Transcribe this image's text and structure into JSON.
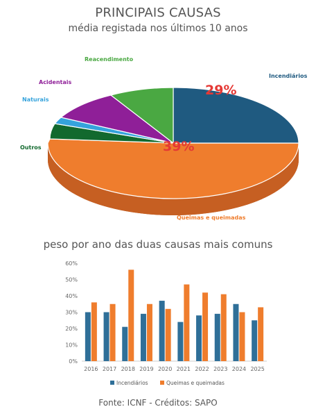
{
  "header": {
    "title": "PRINCIPAIS CAUSAS",
    "subtitle": "média registada nos últimos 10 anos"
  },
  "pie": {
    "slices": [
      {
        "name": "Incendiários",
        "color": "#1f5a80"
      },
      {
        "name": "Queimas e queimadas",
        "color": "#ef7d2d"
      },
      {
        "name": "Outros",
        "color": "#12692e"
      },
      {
        "name": "Naturais",
        "color": "#35a3dc"
      },
      {
        "name": "Acidentais",
        "color": "#8f1f98"
      },
      {
        "name": "Reacendimento",
        "color": "#4aa842"
      }
    ],
    "percent_labels": {
      "incendiarios": "29%",
      "queimas": "39%"
    }
  },
  "chart_data": {
    "type": "bar",
    "title": "peso por ano das duas causas mais comuns",
    "categories": [
      "2016",
      "2017",
      "2018",
      "2019",
      "2020",
      "2021",
      "2022",
      "2023",
      "2024",
      "2025"
    ],
    "series": [
      {
        "name": "Incendiários",
        "color": "#2f6f98",
        "values": [
          30,
          30,
          21,
          29,
          37,
          24,
          28,
          29,
          35,
          25
        ]
      },
      {
        "name": "Queimas e queimadas",
        "color": "#ef7d2d",
        "values": [
          36,
          35,
          56,
          35,
          32,
          47,
          42,
          41,
          30,
          33
        ]
      }
    ],
    "ylim": [
      0,
      60
    ],
    "yticks": [
      "0%",
      "10%",
      "20%",
      "30%",
      "40%",
      "50%",
      "60%"
    ],
    "legend": "bottom",
    "grid": false
  },
  "footer": {
    "text": "Fonte: ICNF - Créditos: SAPO"
  }
}
